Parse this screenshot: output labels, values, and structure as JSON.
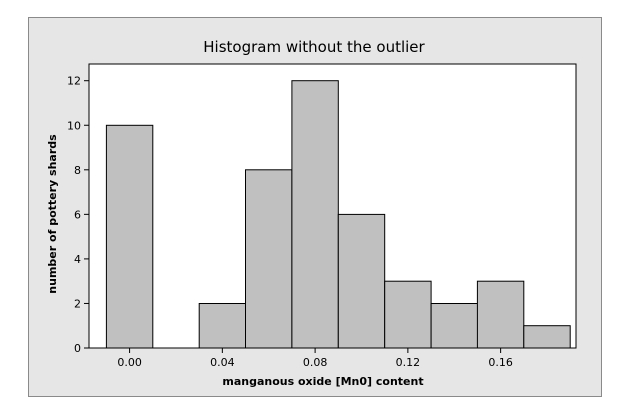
{
  "chart_data": {
    "type": "bar",
    "title": "Histogram without the outlier",
    "xlabel": "manganous oxide [Mn0] content",
    "ylabel": "number of pottery shards",
    "bin_width": 0.02,
    "bins": [
      {
        "center": 0.0,
        "count": 10
      },
      {
        "center": 0.02,
        "count": 0
      },
      {
        "center": 0.04,
        "count": 2
      },
      {
        "center": 0.06,
        "count": 8
      },
      {
        "center": 0.08,
        "count": 12
      },
      {
        "center": 0.1,
        "count": 6
      },
      {
        "center": 0.12,
        "count": 3
      },
      {
        "center": 0.14,
        "count": 2
      },
      {
        "center": 0.16,
        "count": 3
      },
      {
        "center": 0.18,
        "count": 1
      }
    ],
    "x_ticks": [
      {
        "value": 0.0,
        "label": "0.00"
      },
      {
        "value": 0.04,
        "label": "0.04"
      },
      {
        "value": 0.08,
        "label": "0.08"
      },
      {
        "value": 0.12,
        "label": "0.12"
      },
      {
        "value": 0.16,
        "label": "0.16"
      }
    ],
    "y_ticks": [
      0,
      2,
      4,
      6,
      8,
      10,
      12
    ],
    "xlim": [
      -0.0175,
      0.1925
    ],
    "ylim": [
      0,
      12.75
    ],
    "grid": false,
    "legend": "none",
    "colors": {
      "bar_fill": "#c0c0c0",
      "bar_stroke": "#000000",
      "plot_bg": "#ffffff",
      "frame_bg": "#e6e6e6"
    }
  }
}
